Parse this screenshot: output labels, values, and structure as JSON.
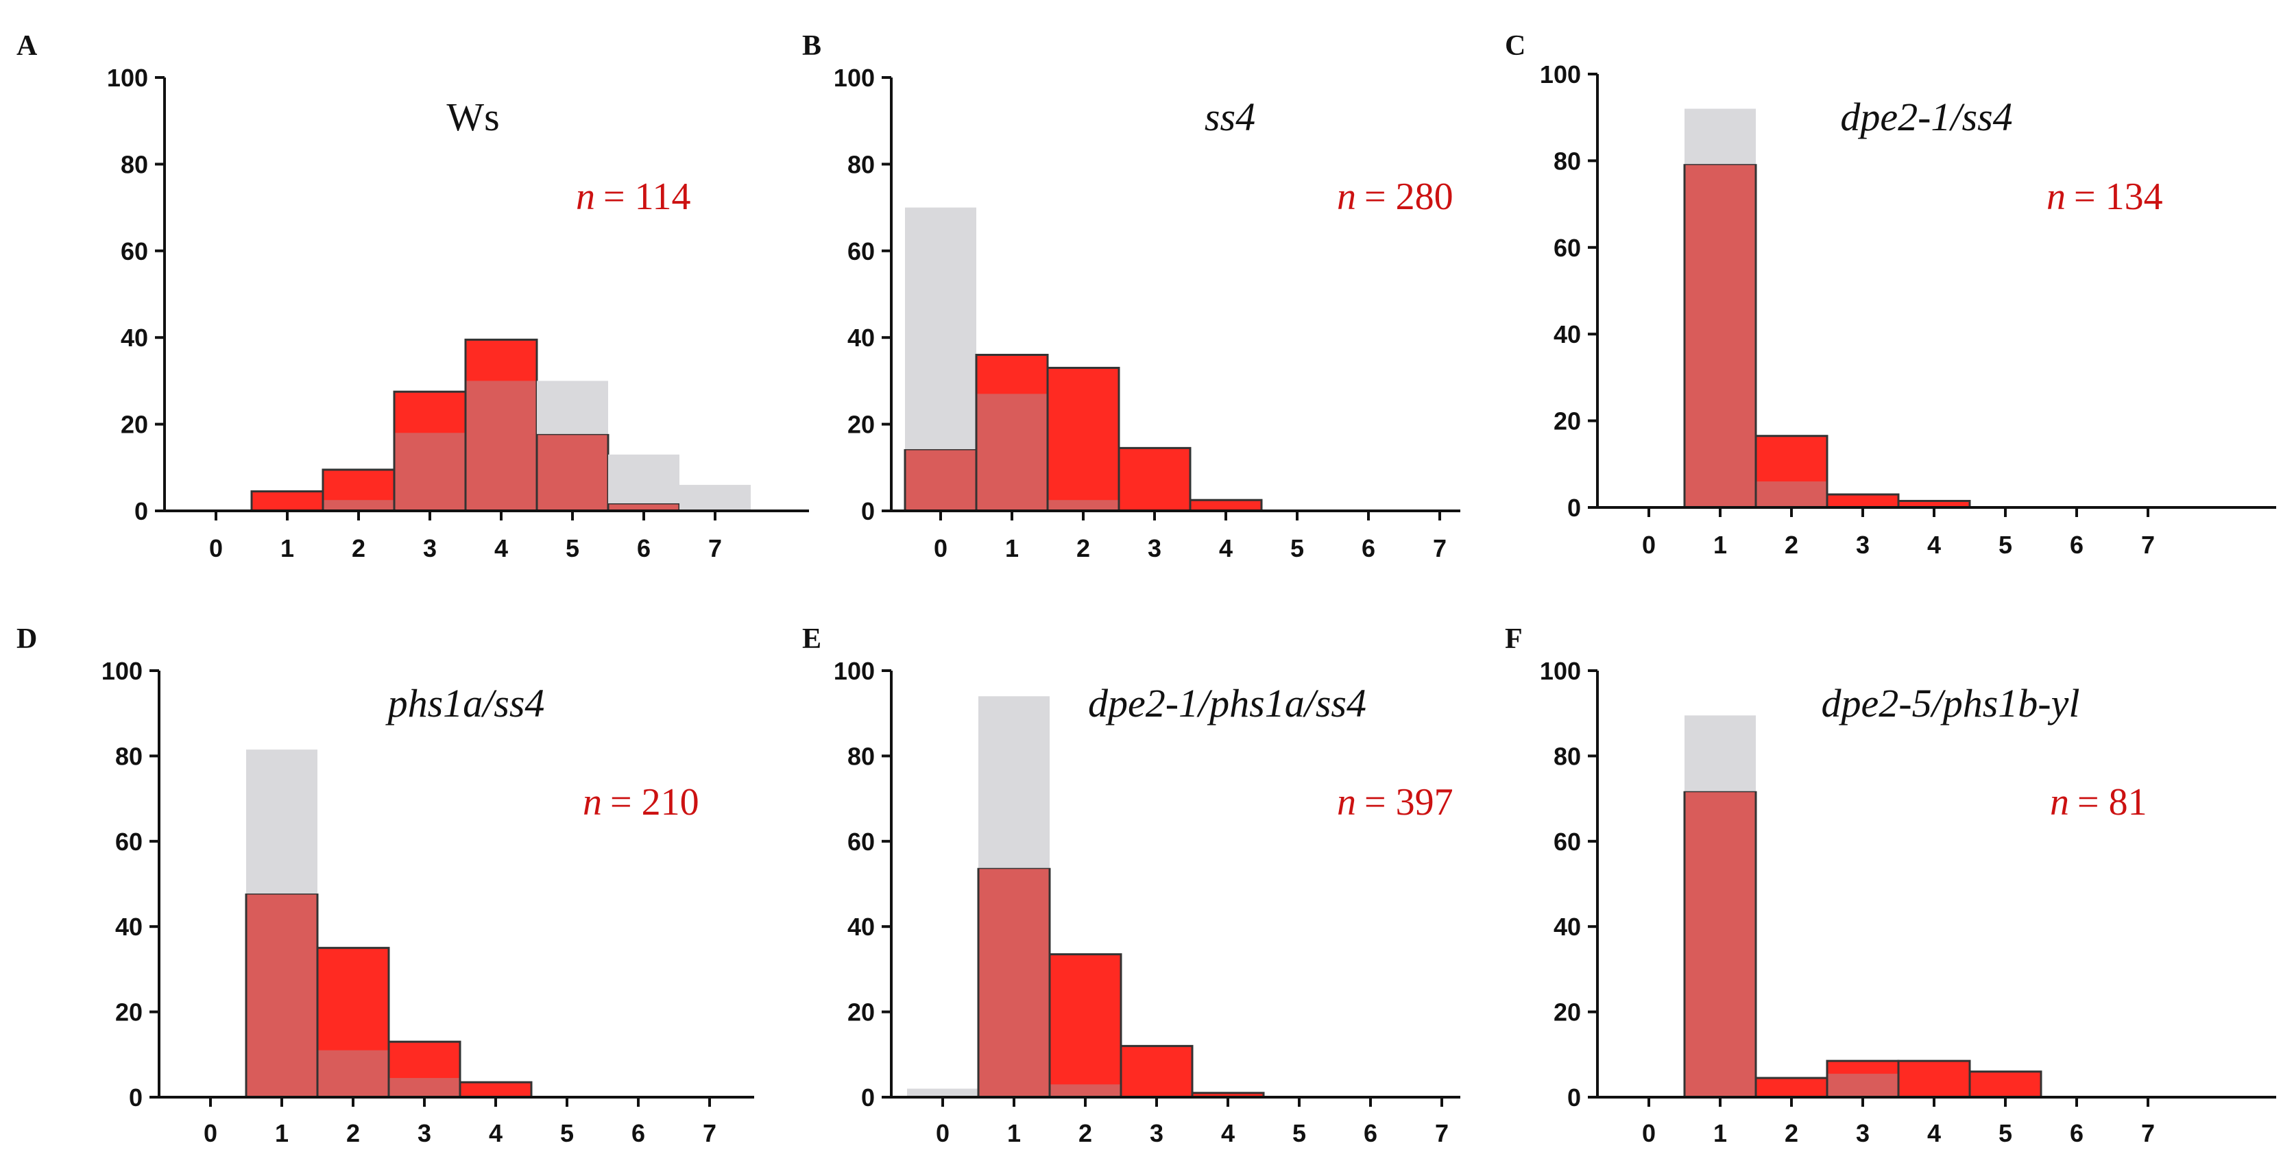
{
  "colors": {
    "background_bar": "#d9d9dc",
    "foreground_bar": "#ff2a22",
    "overlap_bar": "#d95c5a",
    "bar_outline": "#333333",
    "axis": "#111111",
    "n_label": "#cc1111"
  },
  "chart_data": [
    {
      "type": "bar",
      "panel": "A",
      "title": "Ws",
      "title_italic": false,
      "n_label": "n = 114",
      "n_prefix": "n",
      "n_value": "= 114",
      "categories": [
        "0",
        "1",
        "2",
        "3",
        "4",
        "5",
        "6",
        "7"
      ],
      "ylim": [
        0,
        100
      ],
      "yticks": [
        "0",
        "20",
        "40",
        "60",
        "80",
        "100"
      ],
      "series": [
        {
          "values": [
            0,
            0,
            2.5,
            18,
            30,
            30,
            13,
            6
          ]
        },
        {
          "values": [
            0,
            4.5,
            9.5,
            27.5,
            39.5,
            17.5,
            1.5,
            0
          ]
        }
      ]
    },
    {
      "type": "bar",
      "panel": "B",
      "title": "ss4",
      "title_italic": true,
      "n_label": "n = 280",
      "n_prefix": "n",
      "n_value": "= 280",
      "categories": [
        "0",
        "1",
        "2",
        "3",
        "4",
        "5",
        "6",
        "7"
      ],
      "ylim": [
        0,
        100
      ],
      "yticks": [
        "0",
        "20",
        "40",
        "60",
        "80",
        "100"
      ],
      "series": [
        {
          "values": [
            70,
            27,
            2.5,
            0,
            0,
            0,
            0,
            0
          ]
        },
        {
          "values": [
            14,
            36,
            33,
            14.5,
            2.5,
            0,
            0,
            0
          ]
        }
      ]
    },
    {
      "type": "bar",
      "panel": "C",
      "title": "dpe2-1/ss4",
      "title_italic": true,
      "n_label": "n = 134",
      "n_prefix": "n",
      "n_value": "= 134",
      "categories": [
        "0",
        "1",
        "2",
        "3",
        "4",
        "5",
        "6",
        "7"
      ],
      "ylim": [
        0,
        100
      ],
      "yticks": [
        "0",
        "20",
        "40",
        "60",
        "80",
        "100"
      ],
      "series": [
        {
          "values": [
            0,
            92,
            6,
            0,
            0,
            0,
            0,
            0
          ]
        },
        {
          "values": [
            0,
            79,
            16.5,
            3,
            1.5,
            0,
            0,
            0
          ]
        }
      ]
    },
    {
      "type": "bar",
      "panel": "D",
      "title": "phs1a/ss4",
      "title_italic": true,
      "n_label": "n = 210",
      "n_prefix": "n",
      "n_value": "= 210",
      "categories": [
        "0",
        "1",
        "2",
        "3",
        "4",
        "5",
        "6",
        "7"
      ],
      "ylim": [
        0,
        100
      ],
      "yticks": [
        "0",
        "20",
        "40",
        "60",
        "80",
        "100"
      ],
      "series": [
        {
          "values": [
            0,
            81.5,
            11,
            4.5,
            0,
            0,
            0,
            0
          ]
        },
        {
          "values": [
            0,
            47.5,
            35,
            13,
            3.5,
            0,
            0,
            0
          ]
        }
      ]
    },
    {
      "type": "bar",
      "panel": "E",
      "title": "dpe2-1/phs1a/ss4",
      "title_italic": true,
      "n_label": "n = 397",
      "n_prefix": "n",
      "n_value": "= 397",
      "categories": [
        "0",
        "1",
        "2",
        "3",
        "4",
        "5",
        "6",
        "7"
      ],
      "ylim": [
        0,
        100
      ],
      "yticks": [
        "0",
        "20",
        "40",
        "60",
        "80",
        "100"
      ],
      "series": [
        {
          "values": [
            2,
            94,
            3,
            0,
            0,
            0,
            0,
            0
          ]
        },
        {
          "values": [
            0,
            53.5,
            33.5,
            12,
            1,
            0,
            0,
            0
          ]
        }
      ]
    },
    {
      "type": "bar",
      "panel": "F",
      "title": "dpe2-5/phs1b-yl",
      "title_italic": true,
      "n_label": "n = 81",
      "n_prefix": "n",
      "n_value": "= 81",
      "categories": [
        "0",
        "1",
        "2",
        "3",
        "4",
        "5",
        "6",
        "7"
      ],
      "ylim": [
        0,
        100
      ],
      "yticks": [
        "0",
        "20",
        "40",
        "60",
        "80",
        "100"
      ],
      "series": [
        {
          "values": [
            0,
            89.5,
            0,
            5.5,
            0,
            0,
            0,
            0
          ]
        },
        {
          "values": [
            0,
            71.5,
            4.5,
            8.5,
            8.5,
            6,
            0,
            0
          ]
        }
      ]
    }
  ]
}
